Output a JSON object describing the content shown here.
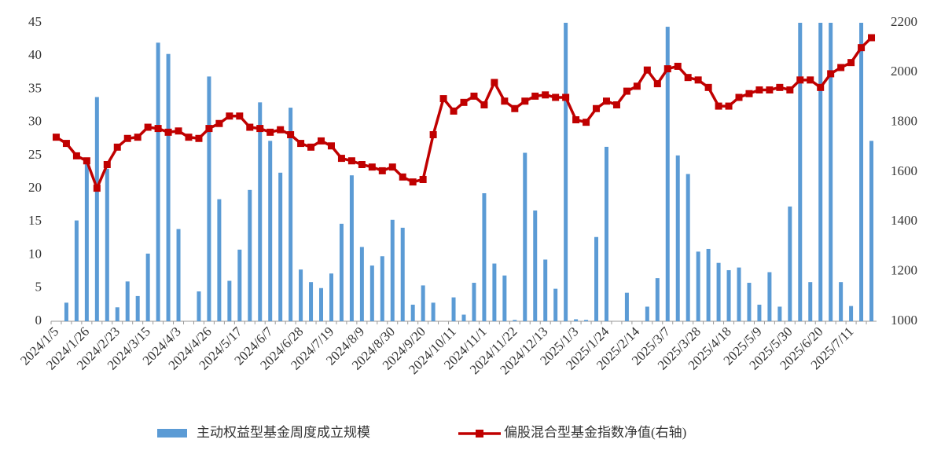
{
  "chart_data": {
    "type": "bar-line",
    "categories": [
      "2024/1/5",
      null,
      null,
      "2024/1/26",
      null,
      null,
      "2024/2/23",
      null,
      null,
      "2024/3/15",
      null,
      null,
      "2024/4/3",
      null,
      null,
      "2024/4/26",
      null,
      null,
      "2024/5/17",
      null,
      null,
      "2024/6/7",
      null,
      null,
      "2024/6/28",
      null,
      null,
      "2024/7/19",
      null,
      null,
      "2024/8/9",
      null,
      null,
      "2024/8/30",
      null,
      null,
      "2024/9/20",
      null,
      null,
      "2024/10/11",
      null,
      null,
      "2024/11/1",
      null,
      null,
      "2024/11/22",
      null,
      null,
      "2024/12/13",
      null,
      null,
      "2025/1/3",
      null,
      null,
      "2025/1/24",
      null,
      null,
      "2025/2/14",
      null,
      null,
      "2025/3/7",
      null,
      null,
      "2025/3/28",
      null,
      null,
      "2025/4/18",
      null,
      null,
      "2025/5/9",
      null,
      null,
      "2025/5/30",
      null,
      null,
      "2025/6/20",
      null,
      null,
      "2025/7/11",
      null,
      null
    ],
    "series": [
      {
        "name": "主动权益型基金周度成立规模",
        "color": "#5b9bd5",
        "kind": "bar",
        "values": [
          0,
          2.8,
          15.2,
          24,
          33.8,
          23,
          2.1,
          6.0,
          3.8,
          10.2,
          42,
          40.3,
          13.9,
          0,
          4.5,
          36.9,
          18.4,
          6.1,
          10.8,
          19.8,
          33,
          27.2,
          22.4,
          32.2,
          7.8,
          5.9,
          5.0,
          7.2,
          14.7,
          22,
          11.2,
          8.4,
          9.8,
          15.3,
          14.1,
          2.5,
          5.4,
          2.8,
          0,
          3.6,
          1.0,
          5.8,
          19.3,
          8.7,
          6.9,
          0.2,
          25.4,
          16.7,
          9.3,
          4.9,
          45,
          0.3,
          0.2,
          12.7,
          26.3,
          0,
          4.3,
          0,
          2.2,
          6.5,
          44.4,
          25,
          22.2,
          10.5,
          10.9,
          8.8,
          7.7,
          8.1,
          5.8,
          2.5,
          7.4,
          2.2,
          17.3,
          45,
          5.9,
          45,
          45,
          5.9,
          2.3,
          45,
          27.2
        ]
      },
      {
        "name": "偏股混合型基金指数净值(右轴)",
        "color": "#c00000",
        "kind": "line",
        "axis": "y2",
        "values": [
          1740,
          1715,
          1665,
          1645,
          1535,
          1630,
          1700,
          1735,
          1740,
          1780,
          1775,
          1760,
          1765,
          1740,
          1735,
          1775,
          1795,
          1825,
          1825,
          1780,
          1775,
          1760,
          1770,
          1750,
          1715,
          1700,
          1725,
          1705,
          1655,
          1645,
          1630,
          1620,
          1605,
          1620,
          1580,
          1560,
          1570,
          1750,
          1895,
          1845,
          1880,
          1905,
          1870,
          1960,
          1885,
          1855,
          1885,
          1905,
          1910,
          1900,
          1900,
          1810,
          1800,
          1855,
          1885,
          1870,
          1925,
          1945,
          2010,
          1955,
          2015,
          2025,
          1980,
          1970,
          1940,
          1865,
          1865,
          1900,
          1915,
          1930,
          1930,
          1940,
          1930,
          1970,
          1970,
          1940,
          1995,
          2020,
          2040,
          2100,
          2140
        ]
      }
    ],
    "ylim": [
      0,
      45
    ],
    "yticks": [
      0,
      5,
      10,
      15,
      20,
      25,
      30,
      35,
      40,
      45
    ],
    "y2lim": [
      1000,
      2200
    ],
    "y2ticks": [
      1000,
      1200,
      1400,
      1600,
      1800,
      2000,
      2200
    ]
  }
}
